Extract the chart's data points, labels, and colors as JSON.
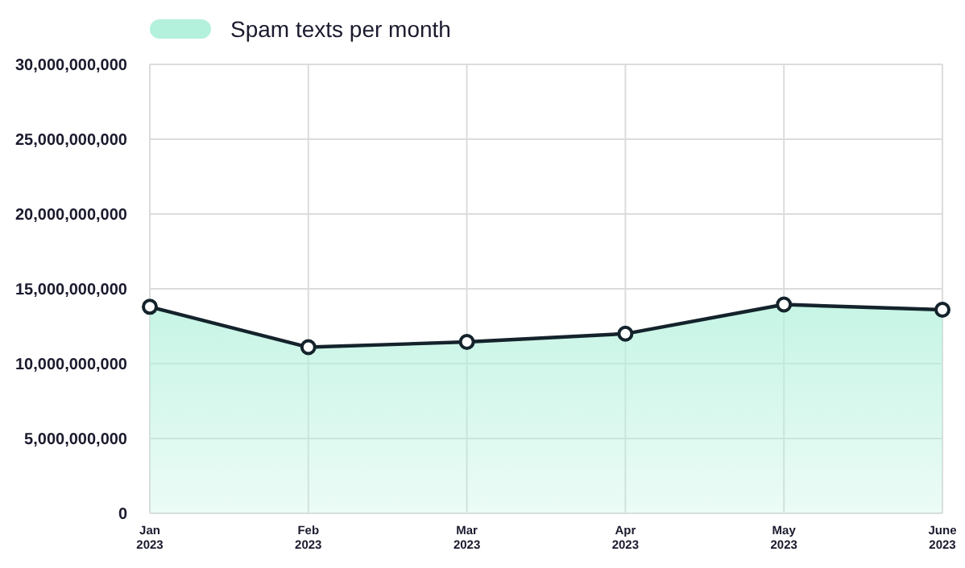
{
  "chart_data": {
    "type": "area",
    "categories": [
      "Jan 2023",
      "Feb 2023",
      "Mar 2023",
      "Apr 2023",
      "May 2023",
      "June 2023"
    ],
    "series": [
      {
        "name": "Spam texts per month",
        "color": "#b3f1dc",
        "values": [
          13800000000,
          11100000000,
          11450000000,
          12000000000,
          13950000000,
          13600000000
        ]
      }
    ],
    "ylim": [
      0,
      30000000000
    ],
    "yticks": [
      {
        "value": 0,
        "label": "0"
      },
      {
        "value": 5000000000,
        "label": "5,000,000,000"
      },
      {
        "value": 10000000000,
        "label": "10,000,000,000"
      },
      {
        "value": 15000000000,
        "label": "15,000,000,000"
      },
      {
        "value": 20000000000,
        "label": "20,000,000,000"
      },
      {
        "value": 25000000000,
        "label": "25,000,000,000"
      },
      {
        "value": 30000000000,
        "label": "30,000,000,000"
      }
    ],
    "grid": true,
    "legend": "top left",
    "marker": "circle",
    "line_style": "solid"
  }
}
